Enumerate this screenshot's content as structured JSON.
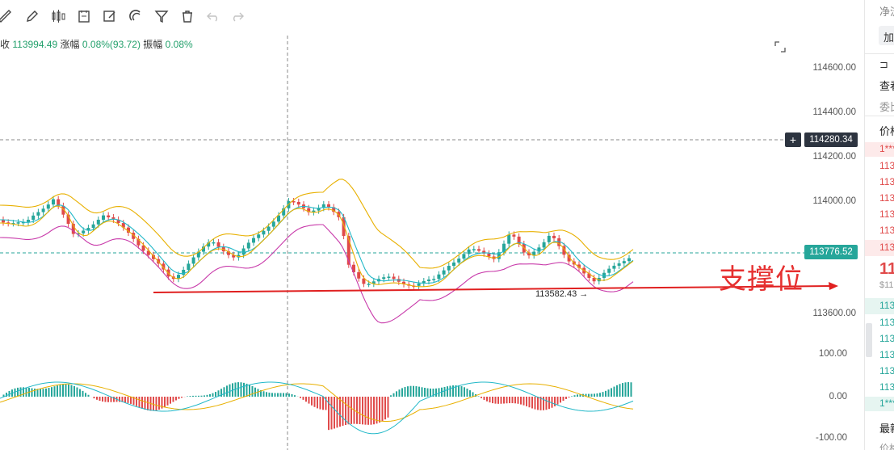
{
  "toolbar": {
    "icons": [
      "ruler-icon",
      "pencil-icon",
      "candlestick-icon",
      "notes-icon",
      "edit-icon",
      "magnet-icon",
      "filter-icon",
      "trash-icon",
      "undo-icon",
      "redo-icon"
    ]
  },
  "info": {
    "close_label": "收",
    "close_value": "113994.49",
    "change_label": "涨幅",
    "change_value": "0.08%(93.72)",
    "amplitude_label": "振幅",
    "amplitude_value": "0.08%"
  },
  "price_axis": [
    "114600.00",
    "114400.00",
    "114200.00",
    "114000.00",
    "113600.00"
  ],
  "macd_axis": [
    "100.00",
    "0.00",
    "-100.00"
  ],
  "crosshair_price": "114280.34",
  "current_price": "113776.52",
  "min_marker": "113582.43",
  "annotation": "支撑位",
  "colors": {
    "up": "#26a69a",
    "down": "#e04a4a",
    "ma_yellow": "#e8b000",
    "ma_cyan": "#22b8c8",
    "ma_magenta": "#c83aaa",
    "support": "#e02020"
  },
  "right_panel": {
    "r1": "净流",
    "r2": "加",
    "r3": "查看",
    "r4": "委比",
    "r5": "价格",
    "r6": "1***",
    "sells": [
      "113",
      "113",
      "113",
      "113",
      "113",
      "113"
    ],
    "last_big": "11",
    "last_small": "$11",
    "buys": [
      "113",
      "113",
      "113",
      "113",
      "113",
      "113"
    ],
    "r7": "1***",
    "r8": "最新",
    "r9": "价格"
  }
}
